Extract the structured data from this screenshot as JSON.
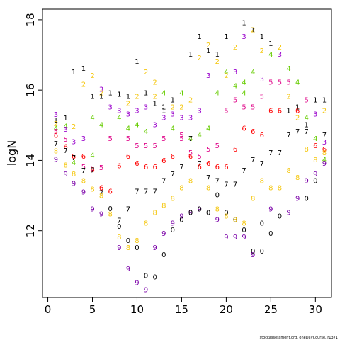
{
  "chart_data": {
    "type": "scatter",
    "ylabel": "logN",
    "xlabel": "",
    "xlim": [
      -0.6,
      31.8
    ],
    "ylim": [
      10.1,
      18.3
    ],
    "xticks": [
      "0",
      "5",
      "10",
      "15",
      "20",
      "25",
      "30"
    ],
    "yticks": [
      "12",
      "14",
      "16",
      "18"
    ],
    "grid": false,
    "credit": "stockassessment.org, oneDayCourse, r1371",
    "colors": {
      "1": "#000000",
      "2": "#f5c710",
      "3": "#9900cc",
      "4": "#66cc00",
      "5": "#e0088a",
      "6": "#ff0000",
      "7": "#000000",
      "8": "#f5c710",
      "9": "#7a00a8"
    },
    "points": [
      [
        0.9,
        15.31,
        "3"
      ],
      [
        0.9,
        15.15,
        "1"
      ],
      [
        0.9,
        15.05,
        "2"
      ],
      [
        0.9,
        14.92,
        "4"
      ],
      [
        0.9,
        14.82,
        "5"
      ],
      [
        0.9,
        14.71,
        "6"
      ],
      [
        0.9,
        14.48,
        "7"
      ],
      [
        0.9,
        14.27,
        "8"
      ],
      [
        0.9,
        14.03,
        "9"
      ],
      [
        2.0,
        15.21,
        "1"
      ],
      [
        2.0,
        14.98,
        "4"
      ],
      [
        2.0,
        14.88,
        "3"
      ],
      [
        2.0,
        14.6,
        "5"
      ],
      [
        2.0,
        14.39,
        "6"
      ],
      [
        2.0,
        14.28,
        "7"
      ],
      [
        2.0,
        13.87,
        "8"
      ],
      [
        2.0,
        13.62,
        "9"
      ],
      [
        2.9,
        16.52,
        "1"
      ],
      [
        2.9,
        14.97,
        "2"
      ],
      [
        2.9,
        14.53,
        "3"
      ],
      [
        2.9,
        14.12,
        "6"
      ],
      [
        2.9,
        13.94,
        "4"
      ],
      [
        2.9,
        13.34,
        "9"
      ],
      [
        2.9,
        14.08,
        "7"
      ],
      [
        2.9,
        13.62,
        "8"
      ],
      [
        4.0,
        16.62,
        "1"
      ],
      [
        4.0,
        16.16,
        "2"
      ],
      [
        4.0,
        14.62,
        "3"
      ],
      [
        4.0,
        14.12,
        "6"
      ],
      [
        4.0,
        13.82,
        "5"
      ],
      [
        4.0,
        13.72,
        "7"
      ],
      [
        4.0,
        13.42,
        "8"
      ],
      [
        4.0,
        13.1,
        "9"
      ],
      [
        5.0,
        16.42,
        "2"
      ],
      [
        5.0,
        15.82,
        "1"
      ],
      [
        5.0,
        15.22,
        "4"
      ],
      [
        5.0,
        14.15,
        "4"
      ],
      [
        5.0,
        13.78,
        "5"
      ],
      [
        5.0,
        13.74,
        "6"
      ],
      [
        5.0,
        13.73,
        "7"
      ],
      [
        5.0,
        13.18,
        "8"
      ],
      [
        5.0,
        12.62,
        "9"
      ],
      [
        6.0,
        16.02,
        "3"
      ],
      [
        6.0,
        15.92,
        "2"
      ],
      [
        6.0,
        15.82,
        "1"
      ],
      [
        6.0,
        15.02,
        "4"
      ],
      [
        6.0,
        13.8,
        "5"
      ],
      [
        6.0,
        13.22,
        "6"
      ],
      [
        6.0,
        13.08,
        "7"
      ],
      [
        6.0,
        13.0,
        "8"
      ],
      [
        6.0,
        12.48,
        "9"
      ],
      [
        7.0,
        15.92,
        "1"
      ],
      [
        7.0,
        15.52,
        "3"
      ],
      [
        7.0,
        14.62,
        "5"
      ],
      [
        7.0,
        13.12,
        "6"
      ],
      [
        7.0,
        12.63,
        "0"
      ],
      [
        7.0,
        12.48,
        "8"
      ],
      [
        8.0,
        15.88,
        "1"
      ],
      [
        8.0,
        15.42,
        "3"
      ],
      [
        8.0,
        15.22,
        "4"
      ],
      [
        8.0,
        13.85,
        "6"
      ],
      [
        8.0,
        12.3,
        "7"
      ],
      [
        8.0,
        12.12,
        "0"
      ],
      [
        8.0,
        11.82,
        "8"
      ],
      [
        8.0,
        11.52,
        "9"
      ],
      [
        9.0,
        15.82,
        "1"
      ],
      [
        9.0,
        15.62,
        "2"
      ],
      [
        9.0,
        15.32,
        "3"
      ],
      [
        9.0,
        14.92,
        "4"
      ],
      [
        9.0,
        14.62,
        "5"
      ],
      [
        9.0,
        14.12,
        "6"
      ],
      [
        9.0,
        12.62,
        "7"
      ],
      [
        9.0,
        11.72,
        "0"
      ],
      [
        9.0,
        11.52,
        "8"
      ],
      [
        9.0,
        10.92,
        "9"
      ],
      [
        10.0,
        16.82,
        "1"
      ],
      [
        10.0,
        15.82,
        "2"
      ],
      [
        10.0,
        15.42,
        "3"
      ],
      [
        10.0,
        15.02,
        "4"
      ],
      [
        10.0,
        14.42,
        "5"
      ],
      [
        10.0,
        13.92,
        "6"
      ],
      [
        10.0,
        13.12,
        "7"
      ],
      [
        10.0,
        11.72,
        "8"
      ],
      [
        10.0,
        11.52,
        "0"
      ],
      [
        10.0,
        10.52,
        "9"
      ],
      [
        11.0,
        16.52,
        "2"
      ],
      [
        11.0,
        15.92,
        "1"
      ],
      [
        11.0,
        15.52,
        "3"
      ],
      [
        11.0,
        14.82,
        "4"
      ],
      [
        11.0,
        14.42,
        "5"
      ],
      [
        11.0,
        13.82,
        "6"
      ],
      [
        11.0,
        13.12,
        "7"
      ],
      [
        11.0,
        12.22,
        "8"
      ],
      [
        11.0,
        10.72,
        "0"
      ],
      [
        11.0,
        10.32,
        "9"
      ],
      [
        12.0,
        16.22,
        "2"
      ],
      [
        12.0,
        15.82,
        "2"
      ],
      [
        12.0,
        15.62,
        "1"
      ],
      [
        12.0,
        15.02,
        "3"
      ],
      [
        12.0,
        14.42,
        "5"
      ],
      [
        12.0,
        13.82,
        "6"
      ],
      [
        12.0,
        13.12,
        "7"
      ],
      [
        12.0,
        12.52,
        "8"
      ],
      [
        12.0,
        11.52,
        "9"
      ],
      [
        12.0,
        10.68,
        "0"
      ],
      [
        13.0,
        15.92,
        "4"
      ],
      [
        13.0,
        15.52,
        "1"
      ],
      [
        13.0,
        15.42,
        "1"
      ],
      [
        13.0,
        15.22,
        "3"
      ],
      [
        13.0,
        14.62,
        "5"
      ],
      [
        13.0,
        14.0,
        "6"
      ],
      [
        13.0,
        13.42,
        "7"
      ],
      [
        13.0,
        12.72,
        "8"
      ],
      [
        13.0,
        11.92,
        "9"
      ],
      [
        13.0,
        11.32,
        "0"
      ],
      [
        14.0,
        15.72,
        "1"
      ],
      [
        14.0,
        15.52,
        "2"
      ],
      [
        14.0,
        15.32,
        "3"
      ],
      [
        14.0,
        14.92,
        "4"
      ],
      [
        14.0,
        14.12,
        "6"
      ],
      [
        14.0,
        13.62,
        "7"
      ],
      [
        14.0,
        12.92,
        "8"
      ],
      [
        14.0,
        12.22,
        "9"
      ],
      [
        14.0,
        12.02,
        "0"
      ],
      [
        15.0,
        15.92,
        "4"
      ],
      [
        15.0,
        15.52,
        "2"
      ],
      [
        15.0,
        15.22,
        "3"
      ],
      [
        15.0,
        14.72,
        "5"
      ],
      [
        15.0,
        14.62,
        "5"
      ],
      [
        15.0,
        13.82,
        "7"
      ],
      [
        15.0,
        13.22,
        "8"
      ],
      [
        15.0,
        12.42,
        "9"
      ],
      [
        15.0,
        12.32,
        "0"
      ],
      [
        16.0,
        17.02,
        "1"
      ],
      [
        16.0,
        15.72,
        "2"
      ],
      [
        16.0,
        15.22,
        "3"
      ],
      [
        16.0,
        14.62,
        "4"
      ],
      [
        16.0,
        14.62,
        "7"
      ],
      [
        16.0,
        14.22,
        "5"
      ],
      [
        16.0,
        14.12,
        "6"
      ],
      [
        16.0,
        13.42,
        "8"
      ],
      [
        16.0,
        12.52,
        "9"
      ],
      [
        16.0,
        12.52,
        "0"
      ],
      [
        17.0,
        17.52,
        "1"
      ],
      [
        17.0,
        16.92,
        "2"
      ],
      [
        17.0,
        15.42,
        "3"
      ],
      [
        17.0,
        14.72,
        "4"
      ],
      [
        17.0,
        13.92,
        "7"
      ],
      [
        17.0,
        13.82,
        "6"
      ],
      [
        17.0,
        14.12,
        "5"
      ],
      [
        17.0,
        12.62,
        "9"
      ],
      [
        17.0,
        12.62,
        "0"
      ],
      [
        18.0,
        17.28,
        "2"
      ],
      [
        18.0,
        17.12,
        "1"
      ],
      [
        18.0,
        16.42,
        "3"
      ],
      [
        18.0,
        14.92,
        "4"
      ],
      [
        18.0,
        14.32,
        "5"
      ],
      [
        18.0,
        13.92,
        "6"
      ],
      [
        18.0,
        13.52,
        "7"
      ],
      [
        18.0,
        13.22,
        "8"
      ],
      [
        18.0,
        12.52,
        "0"
      ],
      [
        19.0,
        17.02,
        "1"
      ],
      [
        19.0,
        16.82,
        "2"
      ],
      [
        19.0,
        15.92,
        "4"
      ],
      [
        19.0,
        14.42,
        "5"
      ],
      [
        19.0,
        13.82,
        "6"
      ],
      [
        19.0,
        13.42,
        "7"
      ],
      [
        19.0,
        13.02,
        "0"
      ],
      [
        19.0,
        12.62,
        "8"
      ],
      [
        19.0,
        12.32,
        "9"
      ],
      [
        20.0,
        17.52,
        "1"
      ],
      [
        20.0,
        16.42,
        "2"
      ],
      [
        20.0,
        16.52,
        "4"
      ],
      [
        20.0,
        15.42,
        "5"
      ],
      [
        20.0,
        13.82,
        "6"
      ],
      [
        20.0,
        13.32,
        "7"
      ],
      [
        20.0,
        12.52,
        "0"
      ],
      [
        20.0,
        12.42,
        "8"
      ],
      [
        20.0,
        11.82,
        "9"
      ],
      [
        21.0,
        17.22,
        "2"
      ],
      [
        21.0,
        16.52,
        "3"
      ],
      [
        21.0,
        16.12,
        "4"
      ],
      [
        21.0,
        15.72,
        "5"
      ],
      [
        21.0,
        14.32,
        "6"
      ],
      [
        21.0,
        13.32,
        "7"
      ],
      [
        21.0,
        12.32,
        "0"
      ],
      [
        21.0,
        12.32,
        "8"
      ],
      [
        21.0,
        11.82,
        "9"
      ],
      [
        22.0,
        17.92,
        "1"
      ],
      [
        22.0,
        17.52,
        "3"
      ],
      [
        22.0,
        16.22,
        "4"
      ],
      [
        22.0,
        15.92,
        "4"
      ],
      [
        22.0,
        15.52,
        "5"
      ],
      [
        22.0,
        14.92,
        "6"
      ],
      [
        22.0,
        13.72,
        "7"
      ],
      [
        22.0,
        12.22,
        "8"
      ],
      [
        22.0,
        12.02,
        "0"
      ],
      [
        22.0,
        11.82,
        "9"
      ],
      [
        23.0,
        17.72,
        "1"
      ],
      [
        23.0,
        17.72,
        "2"
      ],
      [
        23.0,
        16.52,
        "4"
      ],
      [
        23.0,
        15.52,
        "5"
      ],
      [
        23.0,
        14.82,
        "6"
      ],
      [
        23.0,
        14.02,
        "7"
      ],
      [
        23.0,
        12.92,
        "8"
      ],
      [
        23.0,
        11.42,
        "0"
      ],
      [
        23.0,
        11.32,
        "9"
      ],
      [
        24.0,
        17.52,
        "1"
      ],
      [
        24.0,
        17.12,
        "2"
      ],
      [
        24.0,
        16.32,
        "3"
      ],
      [
        24.0,
        15.82,
        "5"
      ],
      [
        24.0,
        14.72,
        "6"
      ],
      [
        24.0,
        13.92,
        "7"
      ],
      [
        24.0,
        13.42,
        "8"
      ],
      [
        24.0,
        12.22,
        "0"
      ],
      [
        24.0,
        11.42,
        "0"
      ],
      [
        25.0,
        17.32,
        "1"
      ],
      [
        25.0,
        17.02,
        "4"
      ],
      [
        25.0,
        16.22,
        "5"
      ],
      [
        25.0,
        15.42,
        "6"
      ],
      [
        25.0,
        14.22,
        "7"
      ],
      [
        25.0,
        13.22,
        "8"
      ],
      [
        25.0,
        12.62,
        "9"
      ],
      [
        25.0,
        11.92,
        "0"
      ],
      [
        26.0,
        17.22,
        "2"
      ],
      [
        26.0,
        17.02,
        "3"
      ],
      [
        26.0,
        16.22,
        "5"
      ],
      [
        26.0,
        15.42,
        "6"
      ],
      [
        26.0,
        14.22,
        "7"
      ],
      [
        26.0,
        13.22,
        "8"
      ],
      [
        26.0,
        12.42,
        "0"
      ],
      [
        27.0,
        16.62,
        "4"
      ],
      [
        27.0,
        16.22,
        "5"
      ],
      [
        27.0,
        15.82,
        "2"
      ],
      [
        27.0,
        15.42,
        "1"
      ],
      [
        27.0,
        14.72,
        "7"
      ],
      [
        27.0,
        13.72,
        "8"
      ],
      [
        27.0,
        12.52,
        "9"
      ],
      [
        28.0,
        16.22,
        "4"
      ],
      [
        28.0,
        15.52,
        "1"
      ],
      [
        28.0,
        15.42,
        "6"
      ],
      [
        28.0,
        15.22,
        "2"
      ],
      [
        28.0,
        14.82,
        "7"
      ],
      [
        28.0,
        13.52,
        "8"
      ],
      [
        28.0,
        12.92,
        "9"
      ],
      [
        29.0,
        15.72,
        "5"
      ],
      [
        29.0,
        15.22,
        "4"
      ],
      [
        29.0,
        15.02,
        "1"
      ],
      [
        29.0,
        14.82,
        "7"
      ],
      [
        29.0,
        14.32,
        "8"
      ],
      [
        29.0,
        13.42,
        "9"
      ],
      [
        29.0,
        12.92,
        "0"
      ],
      [
        30.0,
        15.72,
        "1"
      ],
      [
        30.0,
        15.32,
        "3"
      ],
      [
        30.0,
        14.62,
        "4"
      ],
      [
        30.0,
        14.42,
        "6"
      ],
      [
        30.0,
        14.02,
        "8"
      ],
      [
        30.0,
        13.62,
        "9"
      ],
      [
        30.0,
        13.42,
        "0"
      ],
      [
        31.0,
        15.72,
        "1"
      ],
      [
        31.0,
        15.42,
        "2"
      ],
      [
        31.0,
        14.72,
        "7"
      ],
      [
        31.0,
        14.52,
        "3"
      ],
      [
        31.0,
        14.32,
        "6"
      ],
      [
        31.0,
        14.22,
        "8"
      ],
      [
        31.0,
        14.02,
        "4"
      ],
      [
        31.0,
        13.92,
        "9"
      ]
    ]
  }
}
